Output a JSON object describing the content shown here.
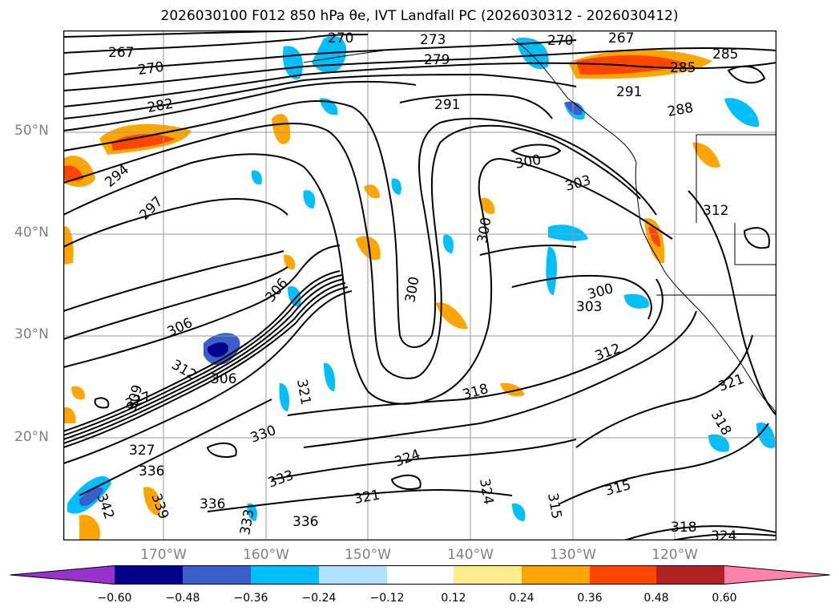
{
  "title": "2026030100 F012 850 hPa θe, IVT Landfall PC (2026030312 - 2026030412)",
  "lat_labels": [
    "50°N",
    "40°N",
    "30°N",
    "20°N"
  ],
  "lon_labels": [
    "170°W",
    "160°W",
    "150°W",
    "140°W",
    "130°W",
    "120°W"
  ],
  "contour_labels": [
    "267",
    "270",
    "273",
    "279",
    "282",
    "285",
    "288",
    "291",
    "294",
    "297",
    "300",
    "303",
    "306",
    "309",
    "312",
    "315",
    "318",
    "321",
    "324",
    "327",
    "330",
    "333",
    "336",
    "339",
    "342"
  ],
  "colorbar": {
    "tick_labels": [
      "−0.60",
      "−0.48",
      "−0.36",
      "−0.24",
      "−0.12",
      "0.12",
      "0.24",
      "0.36",
      "0.48",
      "0.60"
    ],
    "colors": [
      "#9932cc",
      "#00008b",
      "#3a5fcd",
      "#00bfff",
      "#b0e2ff",
      "#ffffff",
      "#ffec8b",
      "#ffa500",
      "#ff4500",
      "#b22222",
      "#ff82ab"
    ]
  }
}
